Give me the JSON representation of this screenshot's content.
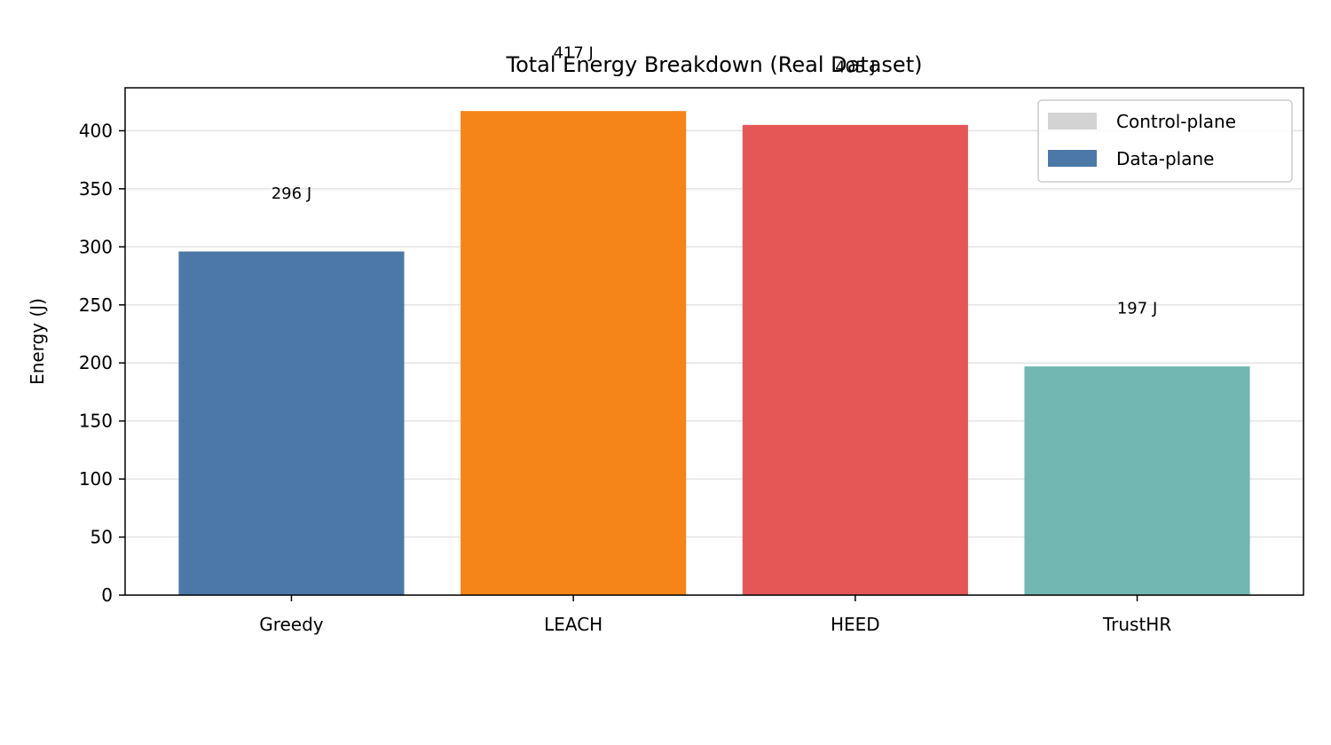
{
  "chart_data": {
    "type": "bar",
    "title": "Total Energy Breakdown (Real Dataset)",
    "xlabel": "",
    "ylabel": "Energy (J)",
    "categories": [
      "Greedy",
      "LEACH",
      "HEED",
      "TrustHR"
    ],
    "series": [
      {
        "name": "Data-plane",
        "values": [
          296,
          417,
          405,
          197
        ]
      },
      {
        "name": "Control-plane",
        "values": [
          0,
          0,
          0,
          0
        ]
      }
    ],
    "bar_colors": [
      "#4c78a8",
      "#f58518",
      "#e45756",
      "#72b7b2"
    ],
    "data_labels": [
      "296 J",
      "417 J",
      "405 J",
      "197 J"
    ],
    "ylim": [
      0,
      437
    ],
    "yticks": [
      0,
      50,
      100,
      150,
      200,
      250,
      300,
      350,
      400
    ],
    "grid": "y",
    "legend": {
      "placement": "top-right",
      "entries": [
        {
          "label": "Control-plane",
          "color": "#d3d3d3"
        },
        {
          "label": "Data-plane",
          "color": "#4c78a8"
        }
      ]
    }
  }
}
